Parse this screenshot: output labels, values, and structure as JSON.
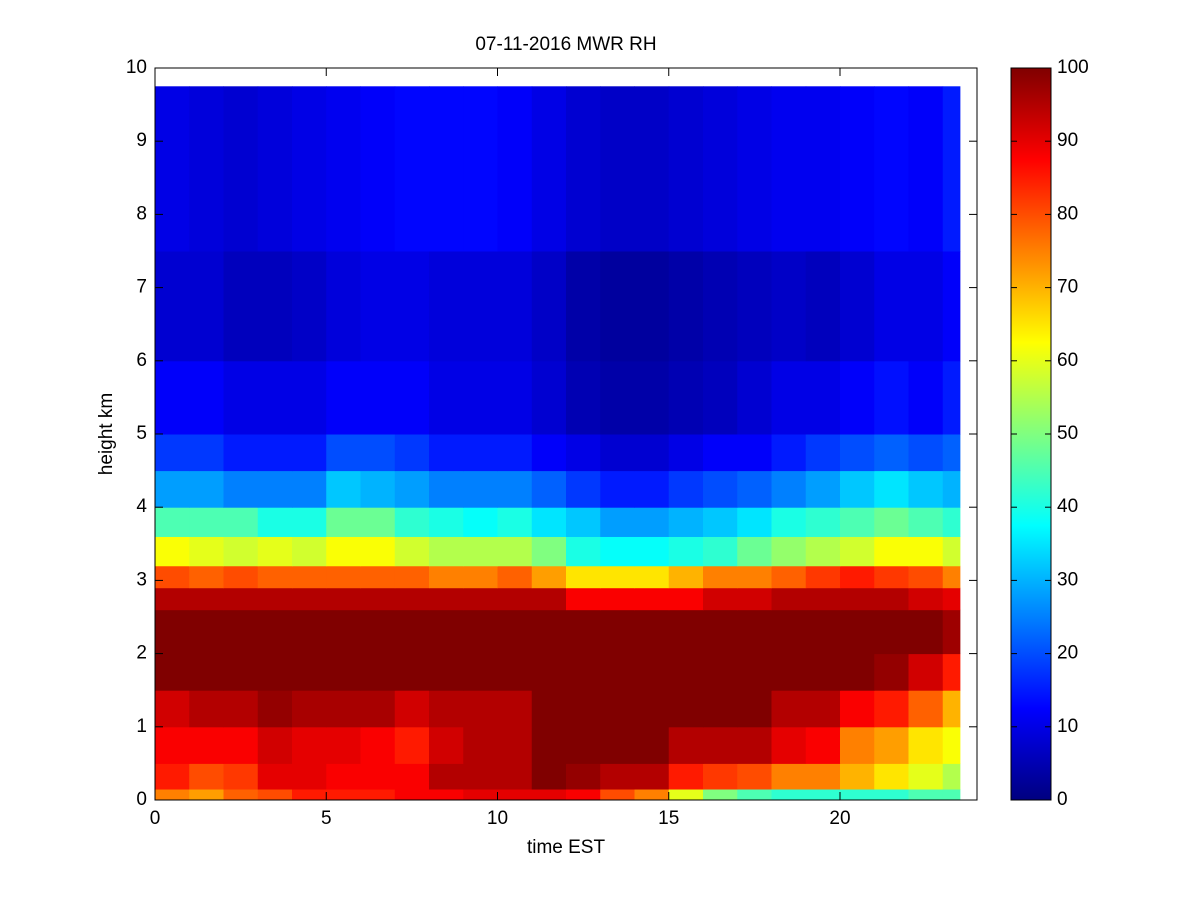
{
  "chart_data": {
    "type": "heatmap",
    "title": "07-11-2016 MWR RH",
    "x_label": "time EST",
    "y_label": "height km",
    "colormap": "jet",
    "x_edges": [
      0,
      1,
      2,
      3,
      4,
      5,
      6,
      7,
      8,
      9,
      10,
      11,
      12,
      13,
      14,
      15,
      16,
      17,
      18,
      19,
      20,
      21,
      22,
      23,
      23.5
    ],
    "y_edges": [
      0,
      0.15,
      0.5,
      1.0,
      1.5,
      2.0,
      2.6,
      2.9,
      3.2,
      3.6,
      4.0,
      4.5,
      5.0,
      6.0,
      7.5,
      9.75
    ],
    "z": [
      [
        75,
        72,
        78,
        80,
        85,
        85,
        85,
        88,
        88,
        90,
        90,
        90,
        88,
        80,
        75,
        60,
        50,
        45,
        42,
        42,
        42,
        42,
        45,
        45
      ],
      [
        85,
        80,
        82,
        90,
        90,
        88,
        88,
        88,
        95,
        95,
        95,
        100,
        98,
        95,
        95,
        85,
        82,
        80,
        75,
        75,
        70,
        65,
        60,
        55
      ],
      [
        88,
        88,
        88,
        92,
        90,
        90,
        88,
        85,
        92,
        95,
        95,
        100,
        100,
        100,
        100,
        95,
        95,
        95,
        90,
        88,
        75,
        72,
        65,
        62
      ],
      [
        92,
        95,
        95,
        98,
        96,
        96,
        96,
        92,
        95,
        95,
        95,
        100,
        100,
        100,
        100,
        100,
        100,
        100,
        95,
        95,
        88,
        85,
        78,
        70
      ],
      [
        100,
        100,
        100,
        100,
        100,
        100,
        100,
        100,
        100,
        100,
        100,
        100,
        100,
        100,
        100,
        100,
        100,
        100,
        100,
        100,
        100,
        98,
        92,
        85
      ],
      [
        100,
        100,
        100,
        100,
        100,
        100,
        100,
        100,
        100,
        100,
        100,
        100,
        100,
        100,
        100,
        100,
        100,
        100,
        100,
        100,
        100,
        100,
        100,
        97
      ],
      [
        95,
        95,
        95,
        95,
        95,
        95,
        95,
        95,
        95,
        95,
        95,
        95,
        88,
        88,
        88,
        88,
        92,
        92,
        95,
        95,
        95,
        95,
        92,
        90
      ],
      [
        80,
        78,
        80,
        78,
        78,
        78,
        78,
        78,
        75,
        75,
        78,
        72,
        65,
        65,
        65,
        70,
        75,
        75,
        78,
        82,
        85,
        82,
        80,
        75
      ],
      [
        62,
        60,
        58,
        60,
        58,
        62,
        62,
        58,
        55,
        55,
        55,
        50,
        40,
        38,
        38,
        40,
        42,
        48,
        52,
        55,
        58,
        62,
        62,
        58
      ],
      [
        45,
        45,
        45,
        40,
        40,
        48,
        48,
        42,
        40,
        38,
        40,
        35,
        32,
        28,
        28,
        30,
        32,
        35,
        40,
        42,
        45,
        48,
        45,
        42
      ],
      [
        28,
        28,
        25,
        25,
        25,
        32,
        30,
        28,
        25,
        25,
        25,
        22,
        18,
        15,
        15,
        18,
        20,
        22,
        25,
        28,
        32,
        35,
        32,
        30
      ],
      [
        18,
        18,
        15,
        15,
        15,
        20,
        20,
        18,
        15,
        15,
        15,
        12,
        10,
        8,
        8,
        10,
        12,
        12,
        15,
        18,
        20,
        22,
        20,
        22
      ],
      [
        12,
        12,
        10,
        10,
        10,
        12,
        12,
        12,
        10,
        10,
        10,
        8,
        5,
        4,
        4,
        5,
        6,
        8,
        10,
        10,
        12,
        14,
        12,
        15
      ],
      [
        8,
        8,
        6,
        6,
        7,
        9,
        10,
        10,
        9,
        9,
        9,
        7,
        4,
        3,
        3,
        4,
        5,
        6,
        7,
        6,
        8,
        10,
        10,
        12
      ],
      [
        10,
        9,
        8,
        9,
        10,
        11,
        12,
        13,
        13,
        13,
        12,
        10,
        8,
        7,
        7,
        8,
        9,
        10,
        11,
        11,
        12,
        13,
        12,
        15
      ]
    ],
    "xlim": [
      0,
      24
    ],
    "ylim": [
      0,
      10
    ],
    "xticks": [
      0,
      5,
      10,
      15,
      20
    ],
    "yticks": [
      0,
      1,
      2,
      3,
      4,
      5,
      6,
      7,
      8,
      9,
      10
    ],
    "clim": [
      0,
      100
    ],
    "cticks": [
      0,
      10,
      20,
      30,
      40,
      50,
      60,
      70,
      80,
      90,
      100
    ]
  }
}
